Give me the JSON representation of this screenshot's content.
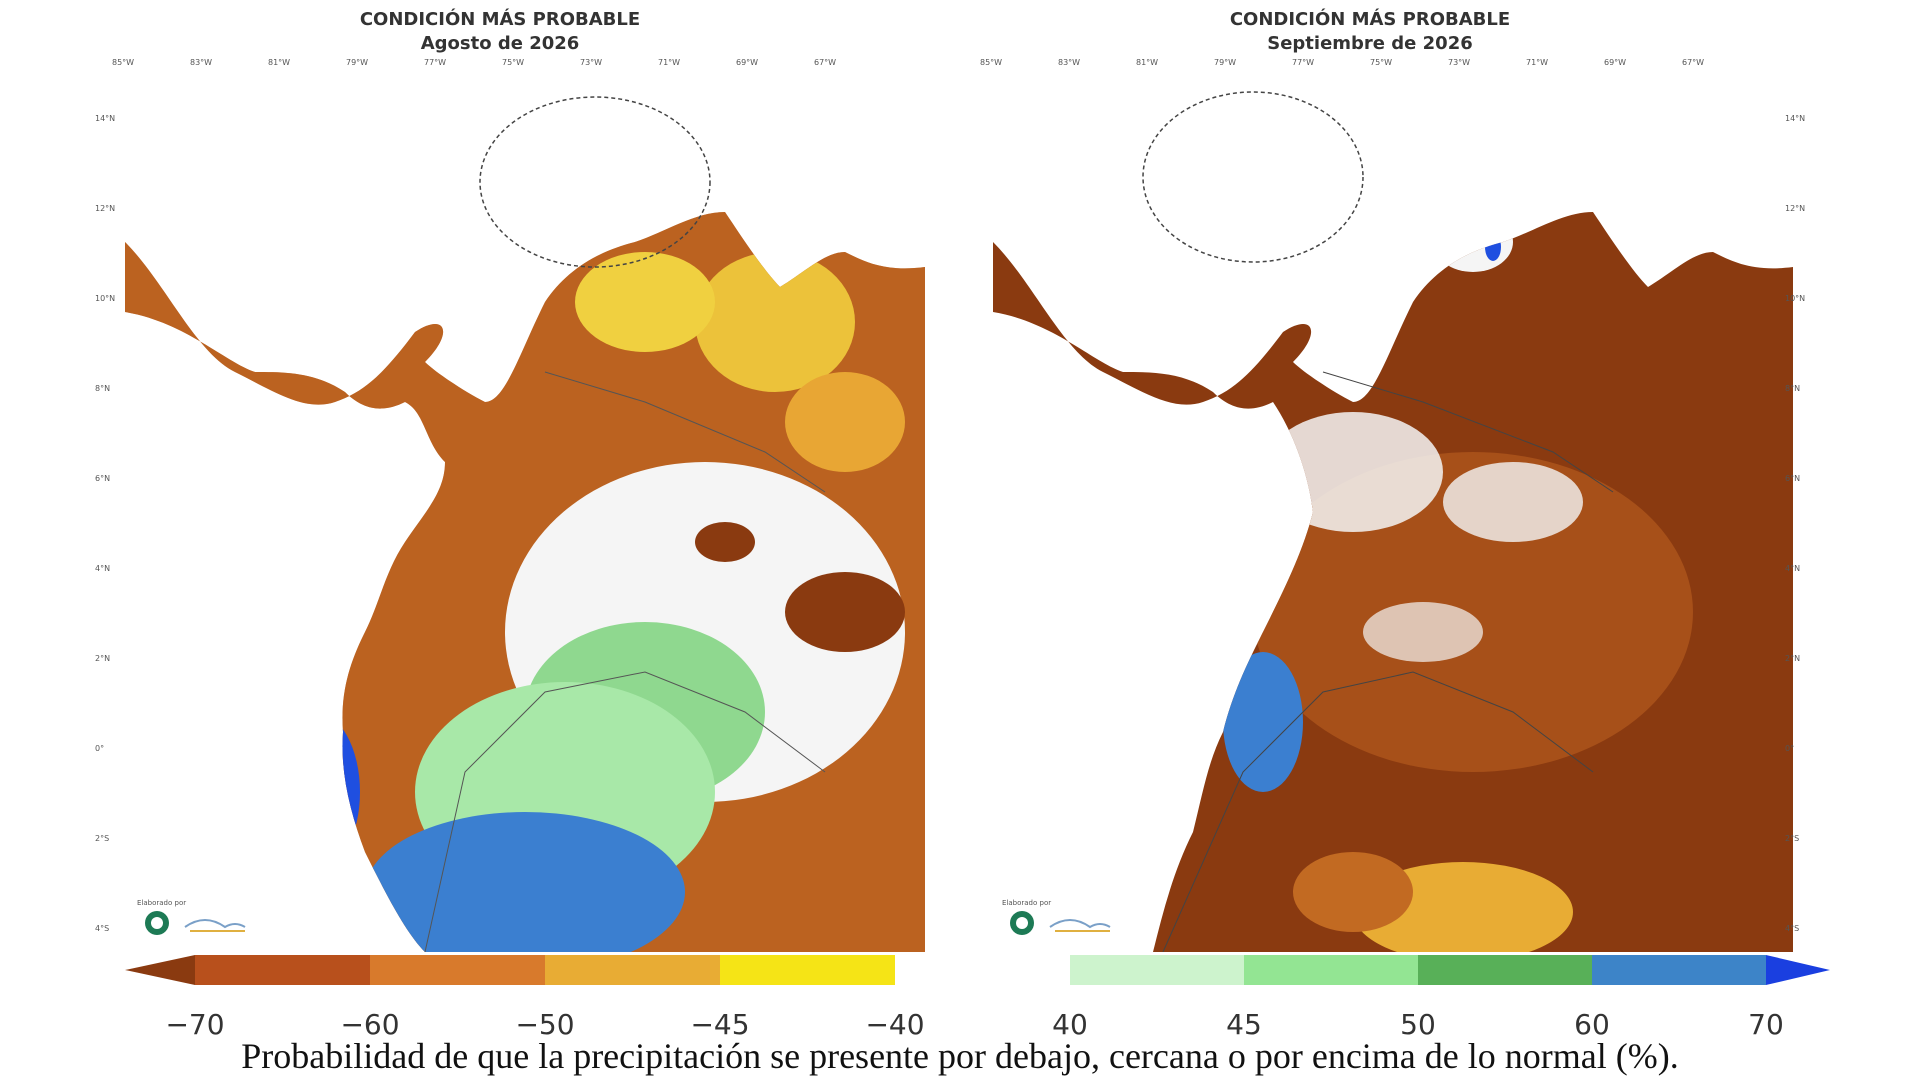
{
  "maps": [
    {
      "title_line1": "CONDICIÓN MÁS PROBABLE",
      "title_line2": "Agosto de 2026",
      "pattern": "mixed"
    },
    {
      "title_line1": "CONDICIÓN MÁS PROBABLE",
      "title_line2": "Septiembre de 2026",
      "pattern": "dry"
    }
  ],
  "lon_ticks": [
    "85°W",
    "83°W",
    "81°W",
    "79°W",
    "77°W",
    "75°W",
    "73°W",
    "71°W",
    "69°W",
    "67°W"
  ],
  "lat_ticks": [
    "14°N",
    "12°N",
    "10°N",
    "8°N",
    "6°N",
    "4°N",
    "2°N",
    "0°",
    "2°S",
    "4°S"
  ],
  "legend_dry": {
    "labels": [
      "−70",
      "−60",
      "−50",
      "−45",
      "−40"
    ],
    "colors": [
      "#8a3a10",
      "#b8501c",
      "#d87a2c",
      "#e8ac34",
      "#f5e416"
    ]
  },
  "legend_wet": {
    "labels": [
      "40",
      "45",
      "50",
      "60",
      "70"
    ],
    "colors": [
      "#cdf3cd",
      "#93e593",
      "#58b058",
      "#3d84c8",
      "#1a3fe0"
    ]
  },
  "caption": "Probabilidad de que la precipitación se presente por debajo, cercana o por encima de lo normal (%).",
  "logo_text": "Elaborado por"
}
